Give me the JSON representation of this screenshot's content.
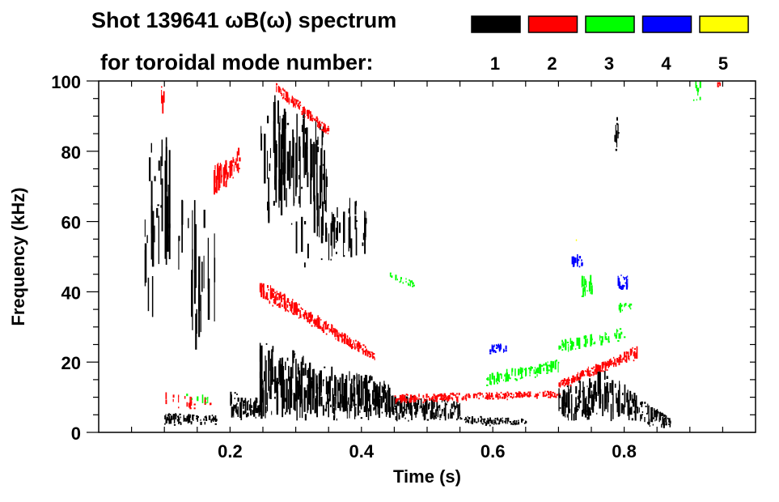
{
  "chart_data": {
    "type": "heatmap",
    "title": "Shot 139641 ωB(ω) spectrum",
    "subtitle": "for toroidal mode number:",
    "xlabel": "Time (s)",
    "ylabel": "Frequency (kHz)",
    "xlim": [
      0,
      1.0
    ],
    "ylim": [
      0,
      100
    ],
    "x_ticks": [
      "0.2",
      "0.4",
      "0.6",
      "0.8"
    ],
    "x_tick_values": [
      0.2,
      0.4,
      0.6,
      0.8
    ],
    "y_ticks": [
      "0",
      "20",
      "40",
      "60",
      "80",
      "100"
    ],
    "y_tick_values": [
      0,
      20,
      40,
      60,
      80,
      100
    ],
    "legend_placement": "top-right",
    "legend": [
      {
        "mode": "1",
        "color": "#000000"
      },
      {
        "mode": "2",
        "color": "#ff0000"
      },
      {
        "mode": "3",
        "color": "#00ff00"
      },
      {
        "mode": "4",
        "color": "#0000ff"
      },
      {
        "mode": "5",
        "color": "#ffff00"
      }
    ],
    "features": [
      {
        "mode": 1,
        "t": [
          0.07,
          0.11
        ],
        "f_start": [
          30,
          85
        ],
        "f_end": [
          35,
          88
        ],
        "density": 0.8
      },
      {
        "mode": 1,
        "t": [
          0.11,
          0.18
        ],
        "f_start": [
          20,
          70
        ],
        "f_end": [
          25,
          65
        ],
        "density": 0.35
      },
      {
        "mode": 1,
        "t": [
          0.1,
          0.18
        ],
        "f_start": [
          2,
          6
        ],
        "f_end": [
          2,
          5
        ],
        "density": 0.7
      },
      {
        "mode": 2,
        "t": [
          0.1,
          0.17
        ],
        "f_start": [
          6,
          12
        ],
        "f_end": [
          6,
          10
        ],
        "density": 0.3
      },
      {
        "mode": 3,
        "t": [
          0.13,
          0.17
        ],
        "f_start": [
          8,
          12
        ],
        "f_end": [
          8,
          11
        ],
        "density": 0.2
      },
      {
        "mode": 2,
        "t": [
          0.095,
          0.105
        ],
        "f_start": [
          88,
          100
        ],
        "f_end": [
          88,
          98
        ],
        "density": 0.6
      },
      {
        "mode": 2,
        "t": [
          0.175,
          0.215
        ],
        "f_start": [
          66,
          76
        ],
        "f_end": [
          74,
          82
        ],
        "density": 0.9
      },
      {
        "mode": 1,
        "t": [
          0.2,
          0.245
        ],
        "f_start": [
          3,
          12
        ],
        "f_end": [
          4,
          10
        ],
        "density": 0.95
      },
      {
        "mode": 1,
        "t": [
          0.245,
          0.35
        ],
        "f_start": [
          58,
          100
        ],
        "f_end": [
          60,
          88
        ],
        "density": 0.75
      },
      {
        "mode": 1,
        "t": [
          0.3,
          0.41
        ],
        "f_start": [
          45,
          72
        ],
        "f_end": [
          50,
          65
        ],
        "density": 0.45
      },
      {
        "mode": 1,
        "t": [
          0.245,
          0.45
        ],
        "f_start": [
          3,
          27
        ],
        "f_end": [
          3,
          14
        ],
        "density": 0.95
      },
      {
        "mode": 2,
        "t": [
          0.245,
          0.42
        ],
        "f_start": [
          38,
          44
        ],
        "f_end": [
          20,
          23
        ],
        "density": 1.0
      },
      {
        "mode": 2,
        "t": [
          0.27,
          0.35
        ],
        "f_start": [
          96,
          100
        ],
        "f_end": [
          84,
          87
        ],
        "density": 0.9
      },
      {
        "mode": 1,
        "t": [
          0.45,
          0.55
        ],
        "f_start": [
          3,
          11
        ],
        "f_end": [
          3,
          9
        ],
        "density": 0.95
      },
      {
        "mode": 1,
        "t": [
          0.55,
          0.65
        ],
        "f_start": [
          2,
          5
        ],
        "f_end": [
          2,
          4
        ],
        "density": 0.7
      },
      {
        "mode": 2,
        "t": [
          0.45,
          0.7
        ],
        "f_start": [
          8,
          11
        ],
        "f_end": [
          10,
          12
        ],
        "density": 0.8
      },
      {
        "mode": 3,
        "t": [
          0.59,
          0.7
        ],
        "f_start": [
          13,
          17
        ],
        "f_end": [
          17,
          21
        ],
        "density": 0.85
      },
      {
        "mode": 4,
        "t": [
          0.595,
          0.62
        ],
        "f_start": [
          22,
          25
        ],
        "f_end": [
          23,
          26
        ],
        "density": 0.8
      },
      {
        "mode": 3,
        "t": [
          0.44,
          0.48
        ],
        "f_start": [
          44,
          46
        ],
        "f_end": [
          41,
          43
        ],
        "density": 0.6
      },
      {
        "mode": 1,
        "t": [
          0.7,
          0.76
        ],
        "f_start": [
          3,
          14
        ],
        "f_end": [
          3,
          18
        ],
        "density": 0.9
      },
      {
        "mode": 1,
        "t": [
          0.76,
          0.87
        ],
        "f_start": [
          3,
          20
        ],
        "f_end": [
          1,
          4
        ],
        "density": 0.9
      },
      {
        "mode": 2,
        "t": [
          0.7,
          0.82
        ],
        "f_start": [
          12,
          15
        ],
        "f_end": [
          21,
          25
        ],
        "density": 1.0
      },
      {
        "mode": 3,
        "t": [
          0.7,
          0.8
        ],
        "f_start": [
          22,
          27
        ],
        "f_end": [
          26,
          30
        ],
        "density": 0.6
      },
      {
        "mode": 3,
        "t": [
          0.735,
          0.75
        ],
        "f_start": [
          38,
          46
        ],
        "f_end": [
          38,
          46
        ],
        "density": 0.9
      },
      {
        "mode": 3,
        "t": [
          0.79,
          0.81
        ],
        "f_start": [
          34,
          37
        ],
        "f_end": [
          34,
          37
        ],
        "density": 0.8
      },
      {
        "mode": 4,
        "t": [
          0.79,
          0.805
        ],
        "f_start": [
          40,
          45
        ],
        "f_end": [
          40,
          45
        ],
        "density": 0.9
      },
      {
        "mode": 4,
        "t": [
          0.72,
          0.735
        ],
        "f_start": [
          47,
          51
        ],
        "f_end": [
          47,
          51
        ],
        "density": 0.8
      },
      {
        "mode": 5,
        "t": [
          0.72,
          0.73
        ],
        "f_start": [
          54,
          56
        ],
        "f_end": [
          54,
          56
        ],
        "density": 0.5
      },
      {
        "mode": 3,
        "t": [
          0.905,
          0.915
        ],
        "f_start": [
          94,
          100
        ],
        "f_end": [
          94,
          100
        ],
        "density": 0.8
      },
      {
        "mode": 2,
        "t": [
          0.94,
          0.945
        ],
        "f_start": [
          98,
          100
        ],
        "f_end": [
          98,
          100
        ],
        "density": 0.8
      },
      {
        "mode": 1,
        "t": [
          0.785,
          0.79
        ],
        "f_start": [
          80,
          90
        ],
        "f_end": [
          80,
          90
        ],
        "density": 0.5
      }
    ]
  }
}
